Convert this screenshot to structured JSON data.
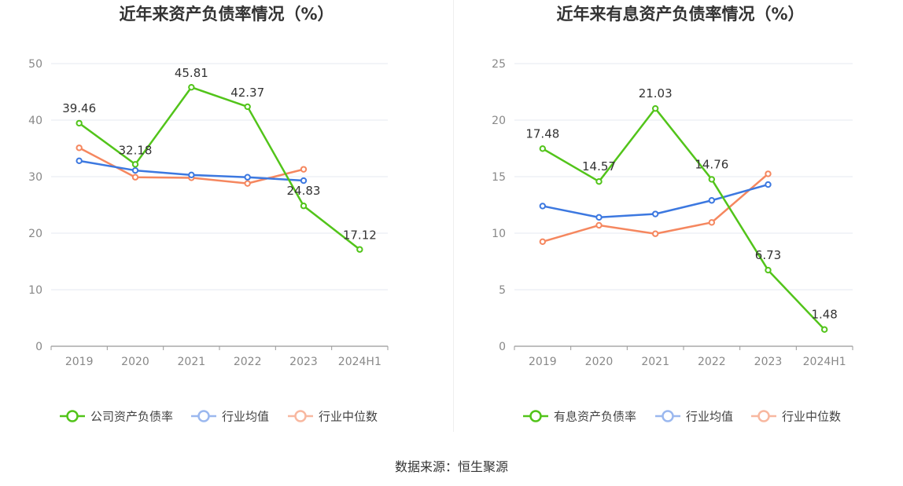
{
  "colors": {
    "company": "#52c41a",
    "avg": "#3c78e0",
    "median": "#f5875f"
  },
  "source_text": "数据来源：恒生聚源",
  "chart_data": [
    {
      "type": "line",
      "title": "近年来资产负债率情况（%）",
      "categories": [
        "2019",
        "2020",
        "2021",
        "2022",
        "2023",
        "2024H1"
      ],
      "ylim": [
        0,
        50
      ],
      "yticks": [
        0,
        10,
        20,
        30,
        40,
        50
      ],
      "grid": true,
      "legend_position": "bottom",
      "series": [
        {
          "name": "公司资产负债率",
          "color": "#52c41a",
          "values": [
            39.46,
            32.18,
            45.81,
            42.37,
            24.83,
            17.12
          ],
          "labels": [
            "39.46",
            "32.18",
            "45.81",
            "42.37",
            "24.83",
            "17.12"
          ]
        },
        {
          "name": "行业均值",
          "color": "#3c78e0",
          "values": [
            32.8,
            31.1,
            30.3,
            29.9,
            29.3,
            null
          ],
          "labels": []
        },
        {
          "name": "行业中位数",
          "color": "#f5875f",
          "values": [
            35.1,
            29.9,
            29.8,
            28.8,
            31.3,
            null
          ],
          "labels": []
        }
      ]
    },
    {
      "type": "line",
      "title": "近年来有息资产负债率情况（%）",
      "categories": [
        "2019",
        "2020",
        "2021",
        "2022",
        "2023",
        "2024H1"
      ],
      "ylim": [
        0,
        25
      ],
      "yticks": [
        0,
        5,
        10,
        15,
        20,
        25
      ],
      "grid": true,
      "legend_position": "bottom",
      "series": [
        {
          "name": "有息资产负债率",
          "color": "#52c41a",
          "values": [
            17.48,
            14.57,
            21.03,
            14.76,
            6.73,
            1.48
          ],
          "labels": [
            "17.48",
            "14.57",
            "21.03",
            "14.76",
            "6.73",
            "1.48"
          ]
        },
        {
          "name": "行业均值",
          "color": "#3c78e0",
          "values": [
            12.4,
            11.4,
            11.7,
            12.9,
            14.3,
            null
          ],
          "labels": []
        },
        {
          "name": "行业中位数",
          "color": "#f5875f",
          "values": [
            9.25,
            10.7,
            9.95,
            10.95,
            15.25,
            null
          ],
          "labels": []
        }
      ]
    }
  ]
}
